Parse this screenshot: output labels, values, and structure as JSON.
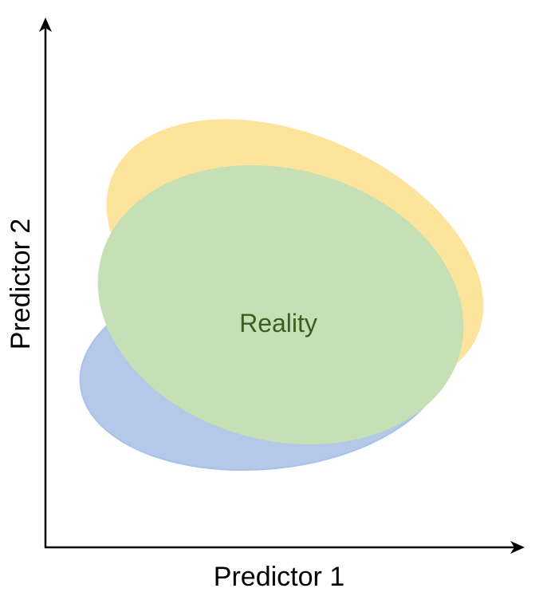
{
  "axes": {
    "x_label": "Predictor 1",
    "y_label": "Predictor 2"
  },
  "regions": {
    "blue": {
      "label": "",
      "fill": "#b4c8e8",
      "stroke": "#a9c2ea"
    },
    "yellow": {
      "label": "",
      "fill": "#fde49c"
    },
    "reality": {
      "label": "Reality",
      "fill": "#c5e0b4",
      "text_color": "#3b5e21"
    }
  },
  "colors": {
    "axis": "#000000",
    "background": "#ffffff"
  }
}
